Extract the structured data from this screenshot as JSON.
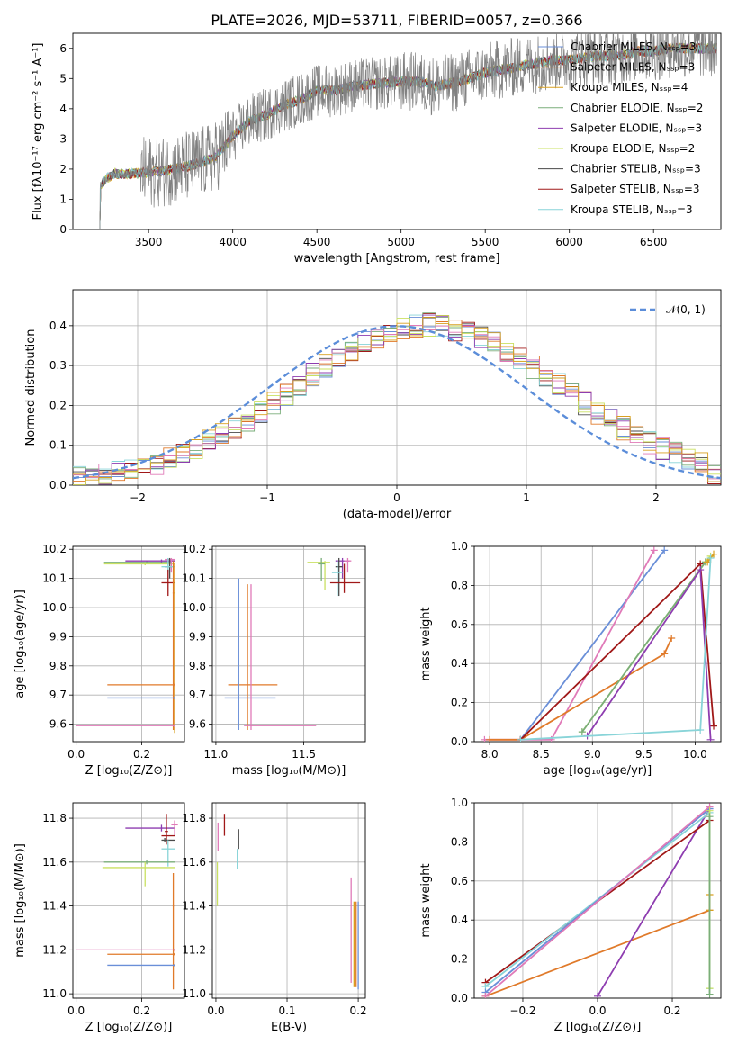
{
  "palette": {
    "chabrier_miles": "#6A8FD8",
    "salpeter_miles": "#E07A2A",
    "kroupa_miles": "#D9A020",
    "chabrier_elodie": "#7AAE7A",
    "salpeter_elodie": "#8E3DB0",
    "kroupa_elodie": "#C9E062",
    "chabrier_stelib": "#4A4A4A",
    "salpeter_stelib": "#A01818",
    "kroupa_stelib": "#88D4D8",
    "pink": "#E07AB8",
    "data_grey": "#808080",
    "gauss": "#5B8DD9"
  },
  "chart_data": [
    {
      "id": "spectrum",
      "type": "line",
      "title": "PLATE=2026, MJD=53711, FIBERID=0057, z=0.366",
      "xlabel": "wavelength [Angstrom, rest frame]",
      "ylabel": "Flux [fλ10⁻¹⁷ erg cm⁻² s⁻¹ A⁻¹]",
      "xlim": [
        3050,
        6900
      ],
      "ylim": [
        0,
        6.5
      ],
      "xticks": [
        "3500",
        "4000",
        "4500",
        "5000",
        "5500",
        "6000",
        "6500"
      ],
      "yticks": [
        "0",
        "1",
        "2",
        "3",
        "4",
        "5",
        "6"
      ],
      "legend_position": "upper-right",
      "legend": [
        {
          "label": "Chabrier MILES, Nₛₛₚ=3",
          "color": "#6A8FD8"
        },
        {
          "label": "Salpeter MILES, Nₛₛₚ=3",
          "color": "#E07A2A"
        },
        {
          "label": "Kroupa MILES, Nₛₛₚ=4",
          "color": "#D9A020"
        },
        {
          "label": "Chabrier ELODIE, Nₛₛₚ=2",
          "color": "#7AAE7A"
        },
        {
          "label": "Salpeter ELODIE, Nₛₛₚ=3",
          "color": "#8E3DB0"
        },
        {
          "label": "Kroupa ELODIE, Nₛₛₚ=2",
          "color": "#C9E062"
        },
        {
          "label": "Chabrier STELIB, Nₛₛₚ=3",
          "color": "#4A4A4A"
        },
        {
          "label": "Salpeter STELIB, Nₛₛₚ=3",
          "color": "#A01818"
        },
        {
          "label": "Kroupa STELIB, Nₛₛₚ=3",
          "color": "#88D4D8"
        }
      ],
      "continuum": [
        [
          3210,
          1.4
        ],
        [
          3250,
          1.7
        ],
        [
          3300,
          1.85
        ],
        [
          3400,
          1.85
        ],
        [
          3500,
          1.9
        ],
        [
          3600,
          1.95
        ],
        [
          3700,
          2.05
        ],
        [
          3800,
          2.2
        ],
        [
          3900,
          2.4
        ],
        [
          4000,
          3.1
        ],
        [
          4100,
          3.6
        ],
        [
          4200,
          3.8
        ],
        [
          4300,
          4.1
        ],
        [
          4400,
          4.3
        ],
        [
          4500,
          4.6
        ],
        [
          4600,
          4.6
        ],
        [
          4700,
          4.75
        ],
        [
          4800,
          4.8
        ],
        [
          4900,
          4.85
        ],
        [
          5000,
          4.9
        ],
        [
          5100,
          4.9
        ],
        [
          5200,
          4.75
        ],
        [
          5300,
          4.85
        ],
        [
          5400,
          5.0
        ],
        [
          5500,
          5.2
        ],
        [
          5600,
          5.3
        ],
        [
          5700,
          5.4
        ],
        [
          5800,
          5.5
        ],
        [
          5900,
          5.6
        ],
        [
          6000,
          5.6
        ],
        [
          6100,
          5.7
        ],
        [
          6200,
          5.75
        ],
        [
          6300,
          5.75
        ],
        [
          6400,
          5.9
        ],
        [
          6500,
          5.9
        ],
        [
          6600,
          6.0
        ],
        [
          6700,
          6.0
        ]
      ]
    },
    {
      "id": "residuals",
      "type": "histogram",
      "xlabel": "(data-model)/error",
      "ylabel": "Normed distribution",
      "xlim": [
        -2.5,
        2.5
      ],
      "ylim": [
        0,
        0.49
      ],
      "xticks": [
        "−2",
        "−1",
        "0",
        "1",
        "2"
      ],
      "yticks": [
        "0.0",
        "0.1",
        "0.2",
        "0.3",
        "0.4"
      ],
      "legend_label": "𝒩(0, 1)",
      "bins": 50,
      "base_density": [
        0.018,
        0.022,
        0.027,
        0.032,
        0.038,
        0.046,
        0.056,
        0.066,
        0.079,
        0.093,
        0.108,
        0.125,
        0.143,
        0.162,
        0.183,
        0.205,
        0.228,
        0.253,
        0.278,
        0.3,
        0.322,
        0.34,
        0.356,
        0.37,
        0.382,
        0.392,
        0.398,
        0.402,
        0.398,
        0.39,
        0.38,
        0.368,
        0.355,
        0.338,
        0.318,
        0.297,
        0.276,
        0.253,
        0.228,
        0.205,
        0.183,
        0.162,
        0.143,
        0.125,
        0.108,
        0.093,
        0.079,
        0.066,
        0.052,
        0.03
      ]
    },
    {
      "id": "age_vs_z",
      "type": "errorbar",
      "xlabel": "Z [log₁₀(Z/Z⊙)]",
      "ylabel": "age  [log₁₀(age/yr)]",
      "xlim": [
        -0.01,
        0.33
      ],
      "ylim": [
        9.54,
        10.21
      ],
      "xticks": [
        "0.0",
        "0.2"
      ],
      "yticks": [
        "9.6",
        "9.7",
        "9.8",
        "9.9",
        "10.0",
        "10.1",
        "10.2"
      ],
      "points": [
        {
          "x": 0.215,
          "xl": 0.085,
          "xh": 0.29,
          "y": 10.155,
          "yl": 10.15,
          "yh": 10.16,
          "c": "#7AAE7A"
        },
        {
          "x": 0.21,
          "xl": 0.085,
          "xh": 0.3,
          "y": 10.15,
          "yl": 10.145,
          "yh": 10.155,
          "c": "#C9E062"
        },
        {
          "x": 0.26,
          "xl": 0.15,
          "xh": 0.3,
          "y": 10.16,
          "yl": 10.155,
          "yh": 10.165,
          "c": "#8E3DB0"
        },
        {
          "x": 0.29,
          "xl": 0.27,
          "xh": 0.3,
          "y": 10.165,
          "yl": 10.12,
          "yh": 10.17,
          "c": "#E07AB8"
        },
        {
          "x": 0.285,
          "xl": 0.27,
          "xh": 0.29,
          "y": 10.14,
          "yl": 10.1,
          "yh": 10.17,
          "c": "#4A4A4A"
        },
        {
          "x": 0.28,
          "xl": 0.26,
          "xh": 0.3,
          "y": 10.14,
          "yl": 10.12,
          "yh": 10.17,
          "c": "#88D4D8"
        },
        {
          "x": 0.28,
          "xl": 0.26,
          "xh": 0.3,
          "y": 10.085,
          "yl": 10.04,
          "yh": 10.13,
          "c": "#A01818"
        },
        {
          "x": 0.296,
          "xl": 0.294,
          "xh": 0.298,
          "y": 10.05,
          "yl": 9.58,
          "yh": 10.16,
          "c": "#E07A2A"
        },
        {
          "x": 0.3,
          "xl": 0.298,
          "xh": 0.302,
          "y": 10.05,
          "yl": 9.57,
          "yh": 10.15,
          "c": "#D9A020"
        },
        {
          "x": 0.3,
          "xl": 0.095,
          "xh": 0.3,
          "y": 9.735,
          "yl": 9.73,
          "yh": 9.74,
          "c": "#E07A2A"
        },
        {
          "x": 0.3,
          "xl": 0.095,
          "xh": 0.3,
          "y": 9.69,
          "yl": 9.685,
          "yh": 9.695,
          "c": "#6A8FD8"
        },
        {
          "x": 0.3,
          "xl": 0.0,
          "xh": 0.3,
          "y": 9.595,
          "yl": 9.59,
          "yh": 9.6,
          "c": "#E07AB8"
        }
      ]
    },
    {
      "id": "age_vs_mass",
      "type": "errorbar",
      "xlabel": "mass [log₁₀(M/M⊙)]",
      "ylabel": "",
      "xlim": [
        10.98,
        11.85
      ],
      "ylim": [
        9.54,
        10.21
      ],
      "xticks": [
        "11.0",
        "11.5"
      ],
      "yticks": [
        "9.6",
        "9.7",
        "9.8",
        "9.9",
        "10.0",
        "10.1",
        "10.2"
      ],
      "points": [
        {
          "x": 11.62,
          "xl": 11.52,
          "xh": 11.65,
          "y": 10.155,
          "yl": 10.06,
          "yh": 10.16,
          "c": "#C9E062"
        },
        {
          "x": 11.6,
          "xl": 11.58,
          "xh": 11.62,
          "y": 10.15,
          "yl": 10.09,
          "yh": 10.17,
          "c": "#7AAE7A"
        },
        {
          "x": 11.72,
          "xl": 11.68,
          "xh": 11.76,
          "y": 10.16,
          "yl": 10.1,
          "yh": 10.17,
          "c": "#8E3DB0"
        },
        {
          "x": 11.7,
          "xl": 11.68,
          "xh": 11.72,
          "y": 10.14,
          "yl": 10.04,
          "yh": 10.17,
          "c": "#4A4A4A"
        },
        {
          "x": 11.69,
          "xl": 11.66,
          "xh": 11.72,
          "y": 10.12,
          "yl": 10.04,
          "yh": 10.16,
          "c": "#88D4D8"
        },
        {
          "x": 11.73,
          "xl": 11.65,
          "xh": 11.82,
          "y": 10.085,
          "yl": 10.05,
          "yh": 10.15,
          "c": "#A01818"
        },
        {
          "x": 11.75,
          "xl": 11.73,
          "xh": 11.77,
          "y": 10.16,
          "yl": 10.12,
          "yh": 10.17,
          "c": "#E07AB8"
        },
        {
          "x": 11.18,
          "xl": 11.07,
          "xh": 11.35,
          "y": 9.735,
          "yl": 9.58,
          "yh": 10.08,
          "c": "#E07A2A"
        },
        {
          "x": 11.13,
          "xl": 11.05,
          "xh": 11.34,
          "y": 9.69,
          "yl": 9.58,
          "yh": 10.1,
          "c": "#6A8FD8"
        },
        {
          "x": 11.2,
          "xl": 11.16,
          "xh": 11.57,
          "y": 9.595,
          "yl": 9.58,
          "yh": 10.08,
          "c": "#E07AB8"
        }
      ]
    },
    {
      "id": "mass_weight_vs_age",
      "type": "line",
      "xlabel": "age  [log₁₀(age/yr)]",
      "ylabel": "mass weight",
      "xlim": [
        7.85,
        10.25
      ],
      "ylim": [
        0,
        1.0
      ],
      "xticks": [
        "8.0",
        "8.5",
        "9.0",
        "9.5",
        "10.0"
      ],
      "yticks": [
        "0.0",
        "0.2",
        "0.4",
        "0.6",
        "0.8",
        "1.0"
      ],
      "series": [
        {
          "c": "#6A8FD8",
          "pts": [
            [
              8.3,
              0.01
            ],
            [
              9.7,
              0.98
            ]
          ]
        },
        {
          "c": "#E07AB8",
          "pts": [
            [
              7.95,
              0.01
            ],
            [
              8.6,
              0.01
            ],
            [
              9.6,
              0.98
            ]
          ]
        },
        {
          "c": "#E07A2A",
          "pts": [
            [
              8.0,
              0.01
            ],
            [
              8.3,
              0.01
            ],
            [
              9.7,
              0.45
            ],
            [
              9.77,
              0.53
            ]
          ]
        },
        {
          "c": "#A01818",
          "pts": [
            [
              8.3,
              0.01
            ],
            [
              10.05,
              0.91
            ],
            [
              10.18,
              0.08
            ]
          ]
        },
        {
          "c": "#C9E062",
          "pts": [
            [
              8.9,
              0.05
            ],
            [
              10.1,
              0.92
            ],
            [
              10.15,
              0.95
            ]
          ]
        },
        {
          "c": "#7AAE7A",
          "pts": [
            [
              8.9,
              0.05
            ],
            [
              10.1,
              0.92
            ]
          ]
        },
        {
          "c": "#8E3DB0",
          "pts": [
            [
              8.95,
              0.03
            ],
            [
              10.05,
              0.88
            ],
            [
              10.15,
              0.01
            ]
          ]
        },
        {
          "c": "#D9A020",
          "pts": [
            [
              10.12,
              0.92
            ],
            [
              10.18,
              0.96
            ]
          ]
        },
        {
          "c": "#88D4D8",
          "pts": [
            [
              8.3,
              0.01
            ],
            [
              10.05,
              0.06
            ],
            [
              10.15,
              0.94
            ]
          ]
        }
      ]
    },
    {
      "id": "mass_vs_z",
      "type": "errorbar",
      "xlabel": "Z [log₁₀(Z/Z⊙)]",
      "ylabel": "mass [log₁₀(M/M⊙)]",
      "xlim": [
        -0.01,
        0.33
      ],
      "ylim": [
        10.98,
        11.87
      ],
      "xticks": [
        "0.0",
        "0.2"
      ],
      "yticks": [
        "11.0",
        "11.2",
        "11.4",
        "11.6",
        "11.8"
      ],
      "points": [
        {
          "x": 0.26,
          "xl": 0.15,
          "xh": 0.3,
          "y": 11.755,
          "yl": 11.74,
          "yh": 11.77,
          "c": "#8E3DB0"
        },
        {
          "x": 0.3,
          "xl": 0.29,
          "xh": 0.31,
          "y": 11.77,
          "yl": 11.72,
          "yh": 11.79,
          "c": "#E07AB8"
        },
        {
          "x": 0.275,
          "xl": 0.27,
          "xh": 0.28,
          "y": 11.74,
          "yl": 11.68,
          "yh": 11.82,
          "c": "#A01818"
        },
        {
          "x": 0.275,
          "xl": 0.26,
          "xh": 0.3,
          "y": 11.72,
          "yl": 11.7,
          "yh": 11.73,
          "c": "#A01818"
        },
        {
          "x": 0.27,
          "xl": 0.26,
          "xh": 0.3,
          "y": 11.7,
          "yl": 11.69,
          "yh": 11.71,
          "c": "#4A4A4A"
        },
        {
          "x": 0.28,
          "xl": 0.26,
          "xh": 0.3,
          "y": 11.66,
          "yl": 11.58,
          "yh": 11.7,
          "c": "#88D4D8"
        },
        {
          "x": 0.215,
          "xl": 0.085,
          "xh": 0.3,
          "y": 11.6,
          "yl": 11.59,
          "yh": 11.61,
          "c": "#7AAE7A"
        },
        {
          "x": 0.21,
          "xl": 0.08,
          "xh": 0.3,
          "y": 11.575,
          "yl": 11.49,
          "yh": 11.6,
          "c": "#C9E062"
        },
        {
          "x": 0.296,
          "xl": 0.294,
          "xh": 0.298,
          "y": 11.4,
          "yl": 11.02,
          "yh": 11.55,
          "c": "#E07A2A"
        },
        {
          "x": 0.3,
          "xl": 0.0,
          "xh": 0.3,
          "y": 11.2,
          "yl": 11.195,
          "yh": 11.205,
          "c": "#E07AB8"
        },
        {
          "x": 0.3,
          "xl": 0.095,
          "xh": 0.3,
          "y": 11.18,
          "yl": 11.175,
          "yh": 11.185,
          "c": "#E07A2A"
        },
        {
          "x": 0.3,
          "xl": 0.095,
          "xh": 0.3,
          "y": 11.13,
          "yl": 11.125,
          "yh": 11.135,
          "c": "#6A8FD8"
        }
      ]
    },
    {
      "id": "mass_vs_ebv",
      "type": "errorbar",
      "xlabel": "E(B-V)",
      "ylabel": "",
      "xlim": [
        -0.005,
        0.21
      ],
      "ylim": [
        10.98,
        11.87
      ],
      "xticks": [
        "0.0",
        "0.1",
        "0.2"
      ],
      "yticks": [
        "11.0",
        "11.2",
        "11.4",
        "11.6",
        "11.8"
      ],
      "points": [
        {
          "x": 0.012,
          "y": 11.75,
          "yl": 11.72,
          "yh": 11.82,
          "c": "#A01818"
        },
        {
          "x": 0.003,
          "y": 11.7,
          "yl": 11.65,
          "yh": 11.78,
          "c": "#E07AB8"
        },
        {
          "x": 0.032,
          "y": 11.7,
          "yl": 11.66,
          "yh": 11.75,
          "c": "#4A4A4A"
        },
        {
          "x": 0.03,
          "y": 11.62,
          "yl": 11.57,
          "yh": 11.66,
          "c": "#88D4D8"
        },
        {
          "x": 0.002,
          "y": 11.55,
          "yl": 11.4,
          "yh": 11.6,
          "c": "#C9E062"
        },
        {
          "x": 0.19,
          "y": 11.35,
          "yl": 11.05,
          "yh": 11.53,
          "c": "#E07AB8"
        },
        {
          "x": 0.197,
          "y": 11.25,
          "yl": 11.03,
          "yh": 11.42,
          "c": "#E07A2A"
        },
        {
          "x": 0.2,
          "y": 11.25,
          "yl": 11.02,
          "yh": 11.42,
          "c": "#6A8FD8"
        },
        {
          "x": 0.194,
          "y": 11.25,
          "yl": 11.03,
          "yh": 11.42,
          "c": "#D9A020"
        }
      ]
    },
    {
      "id": "mass_weight_vs_z",
      "type": "line",
      "xlabel": "Z [log₁₀(Z/Z⊙)]",
      "ylabel": "mass weight",
      "xlim": [
        -0.33,
        0.33
      ],
      "ylim": [
        0,
        1.0
      ],
      "xticks": [
        "−0.2",
        "0.0",
        "0.2"
      ],
      "yticks": [
        "0.0",
        "0.2",
        "0.4",
        "0.6",
        "0.8",
        "1.0"
      ],
      "series": [
        {
          "c": "#E07A2A",
          "pts": [
            [
              -0.3,
              0.01
            ],
            [
              0.3,
              0.45
            ]
          ]
        },
        {
          "c": "#8E3DB0",
          "pts": [
            [
              0.0,
              0.01
            ],
            [
              0.3,
              0.97
            ]
          ]
        },
        {
          "c": "#A01818",
          "pts": [
            [
              -0.3,
              0.08
            ],
            [
              0.3,
              0.91
            ]
          ]
        },
        {
          "c": "#88D4D8",
          "pts": [
            [
              -0.3,
              0.06
            ],
            [
              0.3,
              0.95
            ],
            [
              0.3,
              0.05
            ]
          ]
        },
        {
          "c": "#6A8FD8",
          "pts": [
            [
              -0.3,
              0.03
            ],
            [
              0.3,
              0.97
            ]
          ]
        },
        {
          "c": "#E07AB8",
          "pts": [
            [
              -0.3,
              0.01
            ],
            [
              0.3,
              0.98
            ]
          ]
        },
        {
          "c": "#C9E062",
          "pts": [
            [
              0.3,
              0.96
            ],
            [
              0.3,
              0.05
            ]
          ]
        },
        {
          "c": "#D9A020",
          "pts": [
            [
              0.3,
              0.53
            ],
            [
              0.3,
              0.45
            ]
          ]
        },
        {
          "c": "#7AAE7A",
          "pts": [
            [
              0.3,
              0.93
            ],
            [
              0.3,
              0.02
            ]
          ]
        }
      ]
    }
  ]
}
